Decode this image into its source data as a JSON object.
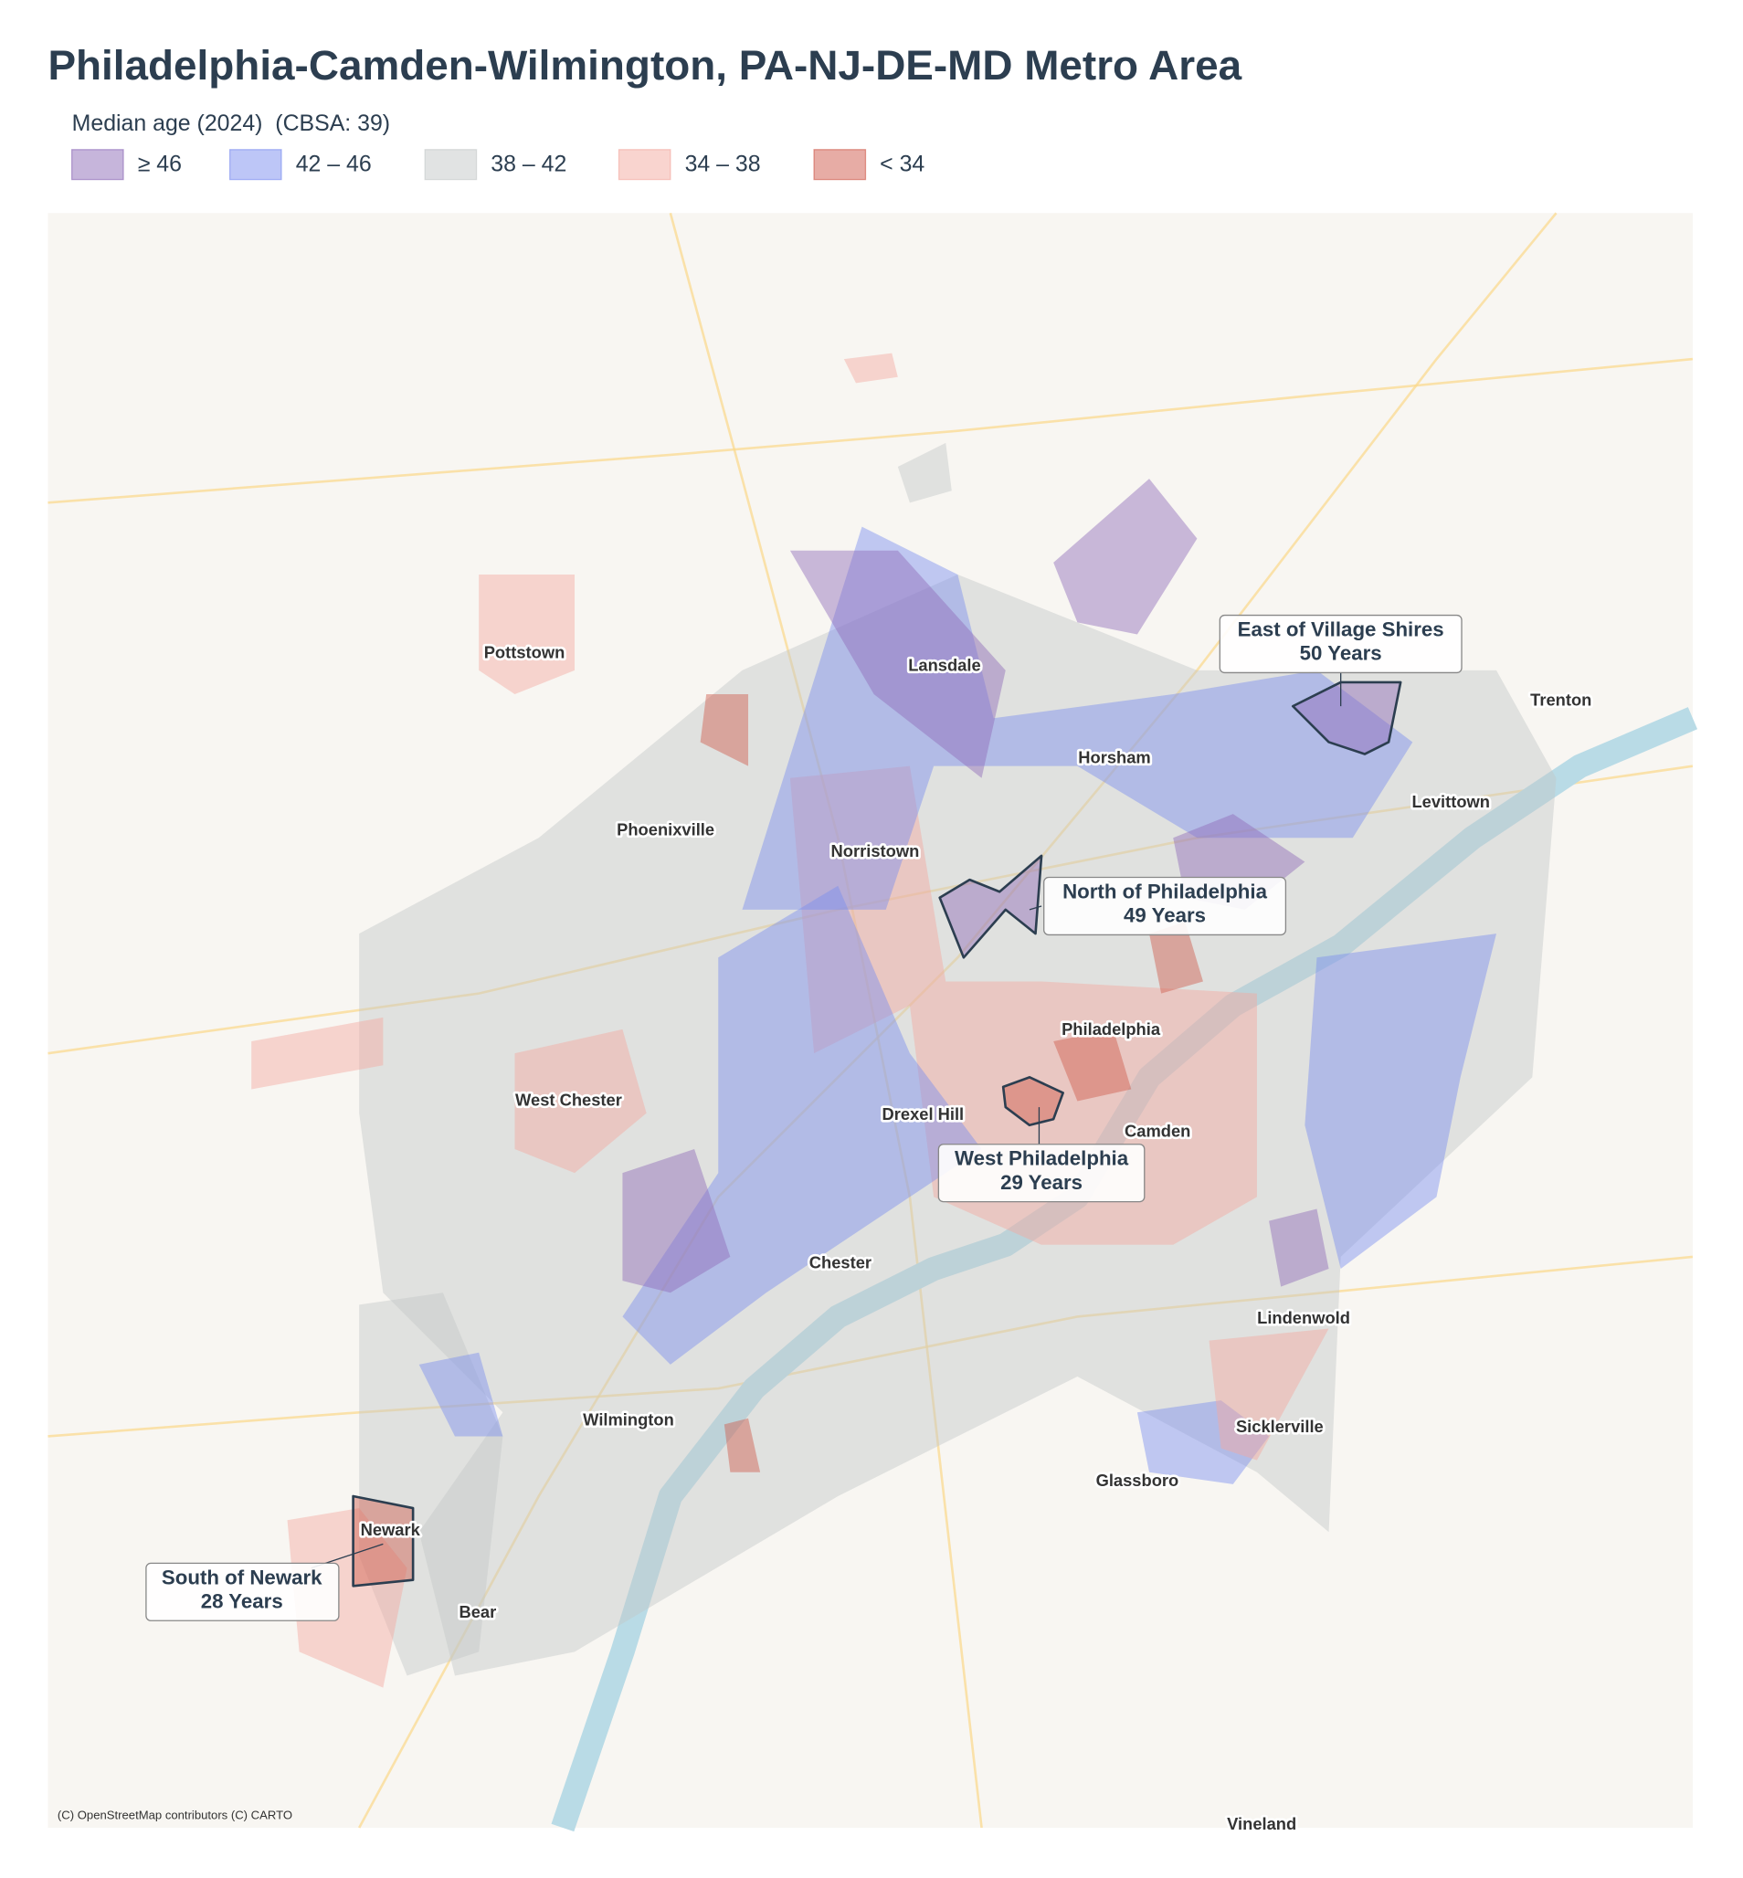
{
  "header": {
    "title": "Philadelphia-Camden-Wilmington, PA-NJ-DE-MD Metro Area",
    "subtitle": "Median age (2024)  (CBSA: 39)"
  },
  "legend": {
    "items": [
      {
        "label": "≥ 46",
        "color": "#8e6bb8"
      },
      {
        "label": "42 – 46",
        "color": "#7b8ef0"
      },
      {
        "label": "38 – 42",
        "color": "#c4c8c8"
      },
      {
        "label": "34 – 38",
        "color": "#f4a9a0"
      },
      {
        "label": "< 34",
        "color": "#cf5a4b"
      }
    ]
  },
  "places": [
    "Pottstown",
    "Lansdale",
    "Horsham",
    "Trenton",
    "Levittown",
    "Phoenixville",
    "Norristown",
    "Philadelphia",
    "West Chester",
    "Drexel Hill",
    "Camden",
    "Chester",
    "Lindenwold",
    "Wilmington",
    "Sicklerville",
    "Glassboro",
    "Newark",
    "Bear",
    "Vineland"
  ],
  "callouts": [
    {
      "name": "East of Village Shires",
      "label": "50 Years"
    },
    {
      "name": "North of Philadelphia",
      "label": "49 Years"
    },
    {
      "name": "West Philadelphia",
      "label": "29 Years"
    },
    {
      "name": "South of Newark",
      "label": "28 Years"
    }
  ],
  "attribution": "(C) OpenStreetMap contributors (C) CARTO"
}
